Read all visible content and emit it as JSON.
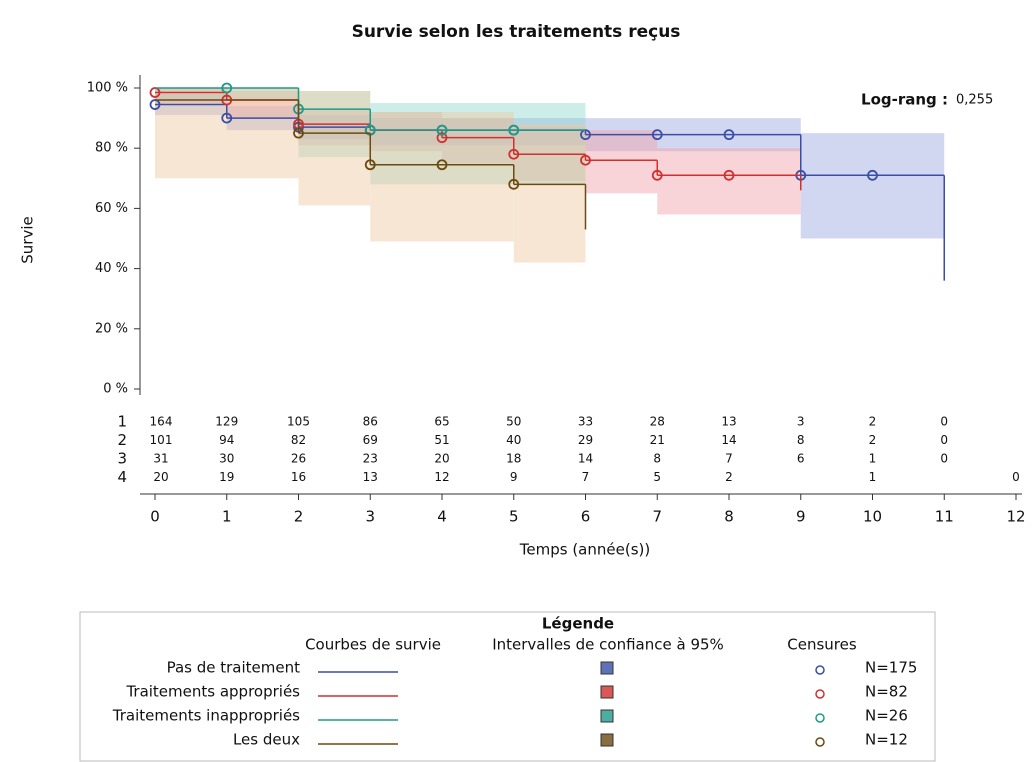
{
  "chart_data": {
    "type": "kaplan-meier",
    "title": "Survie selon les traitements reçus",
    "xlabel": "Temps (année(s))",
    "ylabel": "Survie",
    "xlim": [
      0,
      12
    ],
    "ylim": [
      0,
      100
    ],
    "xticks": [
      0,
      1,
      2,
      3,
      4,
      5,
      6,
      7,
      8,
      9,
      10,
      11,
      12
    ],
    "yticks": [
      {
        "value": 0,
        "label": "0 %"
      },
      {
        "value": 20,
        "label": "20 %"
      },
      {
        "value": 40,
        "label": "40 %"
      },
      {
        "value": 60,
        "label": "60 %"
      },
      {
        "value": 80,
        "label": "80 %"
      },
      {
        "value": 100,
        "label": "100 %"
      }
    ],
    "annotation": {
      "label": "Log-rang :",
      "value": "0,255"
    },
    "legend": {
      "title": "Légende",
      "headers": [
        "Courbes de survie",
        "Intervalles de confiance à 95%",
        "Censures"
      ]
    },
    "series": [
      {
        "name": "Pas de traitement",
        "color": "#3a4ea6",
        "band_color": "#9aa6e0",
        "at_risk_label": "1",
        "n_label": "N=175",
        "x": [
          0,
          1,
          2,
          3,
          6,
          9,
          11
        ],
        "values": [
          94.5,
          90,
          87,
          86,
          84.5,
          71,
          36
        ],
        "ci_lower": [
          91,
          86,
          83,
          81,
          79,
          50,
          null
        ],
        "ci_upper": [
          98,
          94,
          91,
          90,
          90,
          85,
          null
        ],
        "censored_x": [
          0,
          1,
          2,
          3,
          4,
          5,
          6,
          7,
          8,
          9,
          10
        ],
        "censored_y": [
          94.5,
          90,
          87,
          86,
          86,
          86,
          84.5,
          84.5,
          84.5,
          71,
          71
        ],
        "at_risk": [
          164,
          129,
          105,
          86,
          65,
          50,
          33,
          28,
          13,
          3,
          2,
          0,
          null
        ]
      },
      {
        "name": "Traitements appropriés",
        "color": "#d03030",
        "band_color": "#f0a0a8",
        "at_risk_label": "2",
        "n_label": "N=82",
        "x": [
          0,
          1,
          2,
          3,
          4,
          5,
          6,
          7,
          9
        ],
        "values": [
          98.5,
          96,
          88,
          86,
          83.5,
          78,
          76,
          71,
          66
        ],
        "ci_lower": [
          95,
          90,
          81,
          79,
          75,
          69,
          65,
          58,
          null
        ],
        "ci_upper": [
          100,
          99,
          93,
          92,
          90,
          87,
          86,
          80,
          null
        ],
        "censored_x": [
          0,
          1,
          2,
          3,
          4,
          5,
          6,
          7,
          8
        ],
        "censored_y": [
          98.5,
          96,
          88,
          86,
          83.5,
          78,
          76,
          71,
          71
        ],
        "at_risk": [
          101,
          94,
          82,
          69,
          51,
          40,
          29,
          21,
          14,
          8,
          2,
          0,
          null
        ]
      },
      {
        "name": "Traitements inappropriés",
        "color": "#1f9a88",
        "band_color": "#8fd8cc",
        "at_risk_label": "3",
        "n_label": "N=26",
        "x": [
          0,
          2,
          3,
          6
        ],
        "values": [
          100,
          93,
          86,
          86
        ],
        "ci_lower": [
          96,
          77,
          68,
          null
        ],
        "ci_upper": [
          100,
          99,
          95,
          null
        ],
        "censored_x": [
          1,
          2,
          3,
          4,
          5
        ],
        "censored_y": [
          100,
          93,
          86,
          86,
          86
        ],
        "at_risk": [
          31,
          30,
          26,
          23,
          20,
          18,
          14,
          8,
          7,
          6,
          1,
          0,
          null
        ]
      },
      {
        "name": "Les deux",
        "color": "#6b4a10",
        "band_color": "#f0c8a0",
        "at_risk_label": "4",
        "n_label": "N=12",
        "x": [
          0,
          2,
          3,
          5,
          6
        ],
        "values": [
          96,
          85,
          74.5,
          68,
          53
        ],
        "ci_lower": [
          70,
          61,
          49,
          42,
          null
        ],
        "ci_upper": [
          100,
          99,
          92,
          88,
          null
        ],
        "censored_x": [
          2,
          3,
          4,
          5
        ],
        "censored_y": [
          85,
          74.5,
          74.5,
          68
        ],
        "at_risk": [
          20,
          19,
          16,
          13,
          12,
          9,
          7,
          5,
          2,
          null,
          1,
          null,
          0
        ]
      }
    ]
  }
}
